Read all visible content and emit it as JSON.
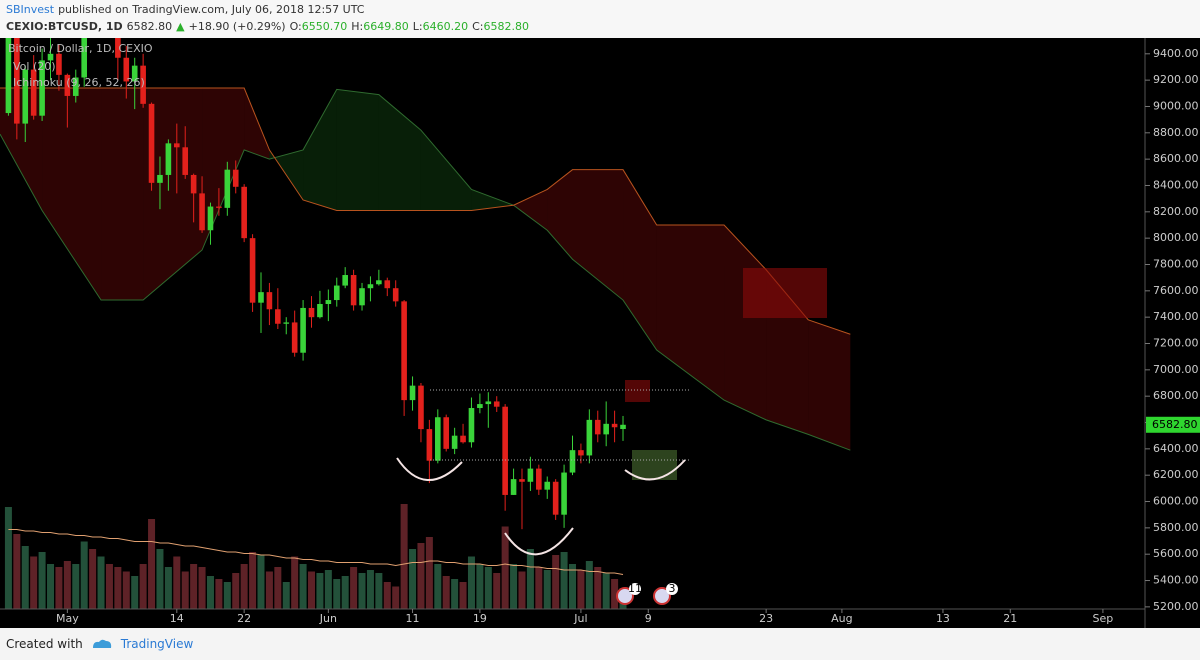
{
  "header": {
    "author": "SBInvest",
    "published": "published on TradingView.com, July 06, 2018 12:57 UTC",
    "symbol": "CEXIO:BTCUSD, 1D",
    "price": "6582.80",
    "arrow": "▲",
    "change": "+18.90 (+0.29%)",
    "o_label": "O:",
    "o": "6550.70",
    "h_label": "H:",
    "h": "6649.80",
    "l_label": "L:",
    "l": "6460.20",
    "c_label": "C:",
    "c": "6582.80"
  },
  "footer": {
    "created": "Created with",
    "brand": "TradingView"
  },
  "chart_data": {
    "type": "candlestick",
    "title": "Bitcoin / Dollar, 1D, CEXIO",
    "indicators": [
      "Vol (20)",
      "Ichimoku (9, 26, 52, 26)"
    ],
    "up_color": "#3ad43a",
    "down_color": "#e3211c",
    "vol_up_color": "#23513a",
    "vol_down_color": "#5e2227",
    "vol_ma_color": "#e0a070",
    "grid": false,
    "xlim": [
      "2018-04-23",
      "2018-09-06"
    ],
    "xticks": [
      {
        "value": "2018-05-01",
        "label": "May"
      },
      {
        "value": "2018-05-14",
        "label": "14"
      },
      {
        "value": "2018-05-22",
        "label": "22"
      },
      {
        "value": "2018-06-01",
        "label": "Jun"
      },
      {
        "value": "2018-06-11",
        "label": "11"
      },
      {
        "value": "2018-06-19",
        "label": "19"
      },
      {
        "value": "2018-07-01",
        "label": "Jul"
      },
      {
        "value": "2018-07-09",
        "label": "9"
      },
      {
        "value": "2018-07-23",
        "label": "23"
      },
      {
        "value": "2018-08-01",
        "label": "Aug"
      },
      {
        "value": "2018-08-13",
        "label": "13"
      },
      {
        "value": "2018-08-21",
        "label": "21"
      },
      {
        "value": "2018-09-01",
        "label": "Sep"
      }
    ],
    "ylim": [
      5180,
      9520
    ],
    "yticks": [
      {
        "value": 5200,
        "label": "5200.00"
      },
      {
        "value": 5400,
        "label": "5400.00"
      },
      {
        "value": 5600,
        "label": "5600.00"
      },
      {
        "value": 5800,
        "label": "5800.00"
      },
      {
        "value": 6000,
        "label": "6000.00"
      },
      {
        "value": 6200,
        "label": "6200.00"
      },
      {
        "value": 6400,
        "label": "6400.00"
      },
      {
        "value": 6600,
        "label": "6600.00"
      },
      {
        "value": 6800,
        "label": "6800.00"
      },
      {
        "value": 7000,
        "label": "7000.00"
      },
      {
        "value": 7200,
        "label": "7200.00"
      },
      {
        "value": 7400,
        "label": "7400.00"
      },
      {
        "value": 7600,
        "label": "7600.00"
      },
      {
        "value": 7800,
        "label": "7800.00"
      },
      {
        "value": 8000,
        "label": "8000.00"
      },
      {
        "value": 8200,
        "label": "8200.00"
      },
      {
        "value": 8400,
        "label": "8400.00"
      },
      {
        "value": 8600,
        "label": "8600.00"
      },
      {
        "value": 8800,
        "label": "8800.00"
      },
      {
        "value": 9000,
        "label": "9000.00"
      },
      {
        "value": 9200,
        "label": "9200.00"
      },
      {
        "value": 9400,
        "label": "9400.00"
      }
    ],
    "x": [
      "2018-04-24",
      "2018-04-25",
      "2018-04-26",
      "2018-04-27",
      "2018-04-28",
      "2018-04-29",
      "2018-04-30",
      "2018-05-01",
      "2018-05-02",
      "2018-05-03",
      "2018-05-04",
      "2018-05-05",
      "2018-05-06",
      "2018-05-07",
      "2018-05-08",
      "2018-05-09",
      "2018-05-10",
      "2018-05-11",
      "2018-05-12",
      "2018-05-13",
      "2018-05-14",
      "2018-05-15",
      "2018-05-16",
      "2018-05-17",
      "2018-05-18",
      "2018-05-19",
      "2018-05-20",
      "2018-05-21",
      "2018-05-22",
      "2018-05-23",
      "2018-05-24",
      "2018-05-25",
      "2018-05-26",
      "2018-05-27",
      "2018-05-28",
      "2018-05-29",
      "2018-05-30",
      "2018-05-31",
      "2018-06-01",
      "2018-06-02",
      "2018-06-03",
      "2018-06-04",
      "2018-06-05",
      "2018-06-06",
      "2018-06-07",
      "2018-06-08",
      "2018-06-09",
      "2018-06-10",
      "2018-06-11",
      "2018-06-12",
      "2018-06-13",
      "2018-06-14",
      "2018-06-15",
      "2018-06-16",
      "2018-06-17",
      "2018-06-18",
      "2018-06-19",
      "2018-06-20",
      "2018-06-21",
      "2018-06-22",
      "2018-06-23",
      "2018-06-24",
      "2018-06-25",
      "2018-06-26",
      "2018-06-27",
      "2018-06-28",
      "2018-06-29",
      "2018-06-30",
      "2018-07-01",
      "2018-07-02",
      "2018-07-03",
      "2018-07-04",
      "2018-07-05",
      "2018-07-06"
    ],
    "open": [
      8950,
      9650,
      8870,
      9280,
      8930,
      9350,
      9400,
      9240,
      9080,
      9220,
      9740,
      9700,
      9850,
      9640,
      9370,
      9190,
      9310,
      9020,
      8420,
      8480,
      8720,
      8690,
      8480,
      8340,
      8060,
      8240,
      8230,
      8520,
      8390,
      8000,
      7510,
      7590,
      7460,
      7350,
      7360,
      7130,
      7470,
      7400,
      7500,
      7530,
      7640,
      7720,
      7490,
      7620,
      7650,
      7680,
      7620,
      7520,
      6770,
      6880,
      6550,
      6310,
      6640,
      6400,
      6500,
      6450,
      6710,
      6740,
      6760,
      6720,
      6050,
      6170,
      6150,
      6250,
      6090,
      6150,
      5900,
      6220,
      6390,
      6350,
      6620,
      6510,
      6590,
      6550.7
    ],
    "high": [
      9750,
      9760,
      9310,
      9390,
      9440,
      9530,
      9470,
      9250,
      9280,
      9780,
      9760,
      9950,
      9930,
      9690,
      9460,
      9370,
      9400,
      9030,
      8620,
      8750,
      8870,
      8850,
      8490,
      8470,
      8270,
      8380,
      8580,
      8590,
      8410,
      8030,
      7740,
      7660,
      7620,
      7400,
      7450,
      7530,
      7560,
      7600,
      7610,
      7700,
      7780,
      7760,
      7660,
      7710,
      7760,
      7700,
      7680,
      7530,
      6950,
      6900,
      6620,
      6700,
      6660,
      6560,
      6590,
      6790,
      6820,
      6830,
      6800,
      6740,
      6250,
      6250,
      6340,
      6280,
      6190,
      6170,
      6280,
      6500,
      6440,
      6700,
      6690,
      6760,
      6690,
      6649.8
    ],
    "low": [
      8930,
      8750,
      8730,
      8900,
      8890,
      9200,
      9120,
      8840,
      9030,
      9150,
      9540,
      9690,
      9580,
      9200,
      9060,
      8980,
      8990,
      8360,
      8220,
      8360,
      8340,
      8450,
      8120,
      8040,
      7950,
      8170,
      8170,
      8340,
      7970,
      7440,
      7280,
      7340,
      7310,
      7270,
      7100,
      7070,
      7320,
      7390,
      7370,
      7480,
      7620,
      7450,
      7450,
      7520,
      7640,
      7560,
      7480,
      6650,
      6690,
      6450,
      6140,
      6290,
      6380,
      6360,
      6440,
      6410,
      6670,
      6560,
      6680,
      5930,
      6050,
      5790,
      6080,
      6050,
      6020,
      5860,
      5800,
      6200,
      6290,
      6290,
      6450,
      6420,
      6450,
      6460.2
    ],
    "close": [
      9650,
      8870,
      9280,
      8930,
      9350,
      9400,
      9240,
      9080,
      9220,
      9740,
      9700,
      9850,
      9640,
      9370,
      9190,
      9310,
      9020,
      8420,
      8480,
      8720,
      8690,
      8480,
      8340,
      8060,
      8240,
      8230,
      8520,
      8390,
      8000,
      7510,
      7590,
      7460,
      7350,
      7360,
      7130,
      7470,
      7400,
      7500,
      7530,
      7640,
      7720,
      7490,
      7620,
      7650,
      7680,
      7620,
      7520,
      6770,
      6880,
      6550,
      6310,
      6640,
      6400,
      6500,
      6450,
      6710,
      6740,
      6760,
      6720,
      6050,
      6170,
      6150,
      6250,
      6090,
      6150,
      5900,
      6220,
      6390,
      6350,
      6620,
      6510,
      6590,
      6563.9,
      6582.8
    ],
    "vol_lim": [
      0,
      100
    ],
    "volume": [
      68,
      50,
      42,
      35,
      38,
      30,
      28,
      32,
      30,
      45,
      40,
      35,
      30,
      28,
      25,
      22,
      30,
      60,
      40,
      28,
      35,
      25,
      30,
      28,
      22,
      20,
      18,
      24,
      30,
      38,
      36,
      25,
      28,
      18,
      35,
      30,
      25,
      24,
      26,
      20,
      22,
      28,
      24,
      26,
      24,
      18,
      15,
      70,
      40,
      44,
      48,
      30,
      22,
      20,
      18,
      35,
      30,
      28,
      24,
      55,
      30,
      25,
      40,
      28,
      26,
      36,
      38,
      30,
      26,
      32,
      28,
      24,
      20,
      14
    ],
    "volume_ma": [
      53,
      53,
      52,
      52,
      51,
      51,
      50,
      50,
      49,
      49,
      48,
      48,
      47,
      47,
      46,
      45,
      45,
      45,
      44,
      44,
      43,
      42,
      42,
      41,
      40,
      39,
      38,
      38,
      37,
      37,
      36,
      36,
      35,
      34,
      34,
      33,
      33,
      32,
      32,
      31,
      31,
      31,
      31,
      30,
      30,
      30,
      29,
      30,
      31,
      31,
      32,
      32,
      31,
      31,
      30,
      30,
      30,
      29,
      29,
      30,
      29,
      29,
      28,
      28,
      27,
      27,
      26,
      26,
      26,
      25,
      25,
      24,
      24,
      23
    ],
    "ichimoku": {
      "x": [
        "2018-04-23",
        "2018-04-28",
        "2018-05-05",
        "2018-05-10",
        "2018-05-17",
        "2018-05-22",
        "2018-05-25",
        "2018-05-29",
        "2018-06-02",
        "2018-06-07",
        "2018-06-12",
        "2018-06-18",
        "2018-06-23",
        "2018-06-27",
        "2018-06-30",
        "2018-07-06",
        "2018-07-10",
        "2018-07-18",
        "2018-07-23",
        "2018-07-28",
        "2018-08-02"
      ],
      "span_a": {
        "color": "#2f6b2f",
        "values": [
          8790,
          8210,
          7530,
          7530,
          7910,
          8670,
          8600,
          8670,
          9130,
          9090,
          8820,
          8370,
          8250,
          8060,
          7840,
          7530,
          7150,
          6770,
          6620,
          6510,
          6390
        ]
      },
      "span_b": {
        "color": "#b8531e",
        "values": [
          9140,
          9140,
          9140,
          9140,
          9140,
          9140,
          8670,
          8290,
          8210,
          8210,
          8210,
          8210,
          8250,
          8370,
          8520,
          8520,
          8100,
          8100,
          7760,
          7380,
          7270
        ]
      },
      "up_fill": "rgba(30,110,30,0.28)",
      "down_fill": "rgba(120,10,10,0.38)"
    },
    "last_color": "#2fd62f",
    "events": [
      11,
      3
    ]
  }
}
